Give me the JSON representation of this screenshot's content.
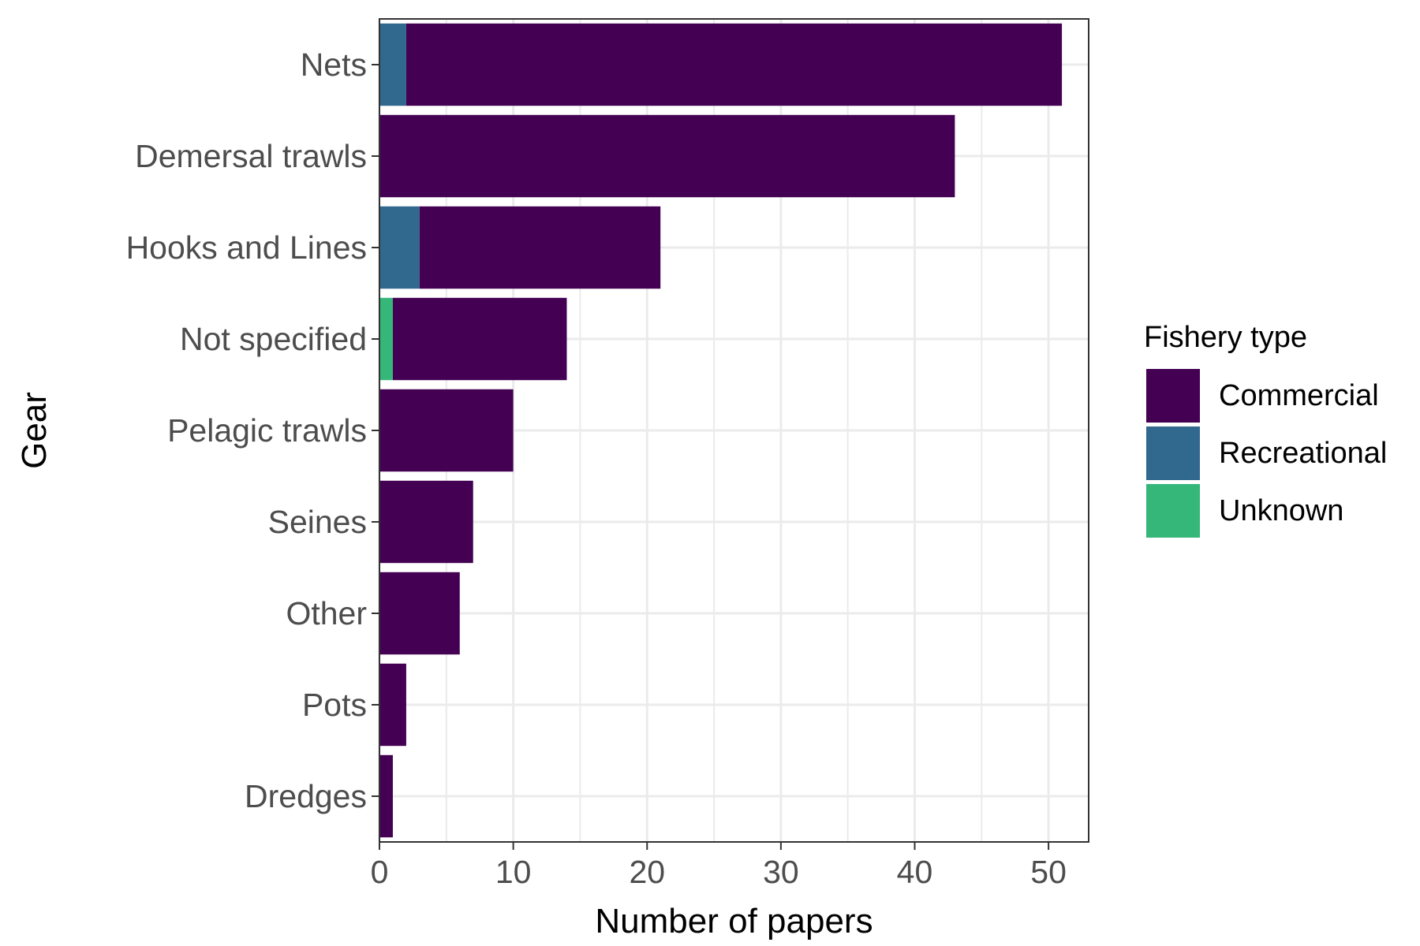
{
  "chart_data": {
    "type": "bar",
    "orientation": "horizontal",
    "stacked": true,
    "xlabel": "Number of papers",
    "ylabel": "Gear",
    "categories": [
      "Nets",
      "Demersal trawls",
      "Hooks and Lines",
      "Not specified",
      "Pelagic trawls",
      "Seines",
      "Other",
      "Pots",
      "Dredges"
    ],
    "series": [
      {
        "name": "Recreational",
        "color": "#31688e",
        "values": [
          2,
          0,
          3,
          0,
          0,
          0,
          0,
          0,
          0
        ]
      },
      {
        "name": "Unknown",
        "color": "#35b779",
        "values": [
          0,
          0,
          0,
          1,
          0,
          0,
          0,
          0,
          0
        ]
      },
      {
        "name": "Commercial",
        "color": "#440154",
        "values": [
          49,
          43,
          18,
          13,
          10,
          7,
          6,
          2,
          1
        ]
      }
    ],
    "xlim": [
      0,
      53
    ],
    "xticks": [
      0,
      10,
      20,
      30,
      40,
      50
    ],
    "grid": true,
    "legend": {
      "title": "Fishery type",
      "position": "right",
      "entries": [
        {
          "label": "Commercial",
          "color": "#440154"
        },
        {
          "label": "Recreational",
          "color": "#31688e"
        },
        {
          "label": "Unknown",
          "color": "#35b779"
        }
      ]
    }
  }
}
